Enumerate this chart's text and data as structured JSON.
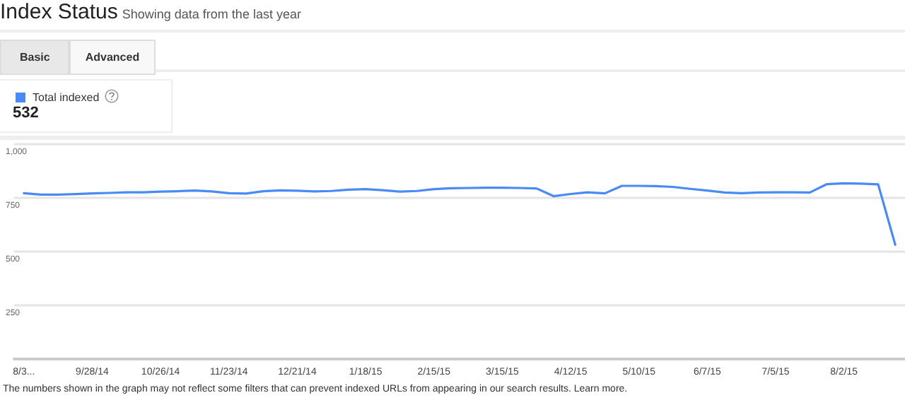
{
  "chart_data": {
    "type": "line",
    "title": "Index Status",
    "subtitle": "Showing data from the last year",
    "x": [
      "2014-08-31",
      "2014-09-07",
      "2014-09-14",
      "2014-09-21",
      "2014-09-28",
      "2014-10-05",
      "2014-10-12",
      "2014-10-19",
      "2014-10-26",
      "2014-11-02",
      "2014-11-09",
      "2014-11-16",
      "2014-11-23",
      "2014-11-30",
      "2014-12-07",
      "2014-12-14",
      "2014-12-21",
      "2014-12-28",
      "2015-01-04",
      "2015-01-11",
      "2015-01-18",
      "2015-01-25",
      "2015-02-01",
      "2015-02-08",
      "2015-02-15",
      "2015-02-22",
      "2015-03-01",
      "2015-03-08",
      "2015-03-15",
      "2015-03-22",
      "2015-03-29",
      "2015-04-05",
      "2015-04-12",
      "2015-04-19",
      "2015-04-26",
      "2015-05-03",
      "2015-05-10",
      "2015-05-17",
      "2015-05-24",
      "2015-05-31",
      "2015-06-07",
      "2015-06-14",
      "2015-06-21",
      "2015-06-28",
      "2015-07-05",
      "2015-07-12",
      "2015-07-19",
      "2015-07-26",
      "2015-08-02",
      "2015-08-09",
      "2015-08-16",
      "2015-08-23"
    ],
    "series": [
      {
        "name": "Total indexed",
        "color": "#4a8af4",
        "values": [
          772,
          765,
          765,
          768,
          771,
          773,
          776,
          776,
          779,
          781,
          784,
          780,
          772,
          770,
          781,
          785,
          783,
          780,
          782,
          788,
          791,
          786,
          779,
          782,
          791,
          795,
          796,
          797,
          797,
          796,
          794,
          758,
          768,
          776,
          771,
          806,
          806,
          805,
          801,
          792,
          784,
          775,
          772,
          775,
          776,
          776,
          775,
          814,
          818,
          816,
          813,
          532
        ]
      }
    ],
    "xlim": [
      "2014-08-27",
      "2015-08-27"
    ],
    "xticks": [
      {
        "value": "2014-08-31",
        "label": "8/3..."
      },
      {
        "value": "2014-09-28",
        "label": "9/28/14"
      },
      {
        "value": "2014-10-26",
        "label": "10/26/14"
      },
      {
        "value": "2014-11-23",
        "label": "11/23/14"
      },
      {
        "value": "2014-12-21",
        "label": "12/21/14"
      },
      {
        "value": "2015-01-18",
        "label": "1/18/15"
      },
      {
        "value": "2015-02-15",
        "label": "2/15/15"
      },
      {
        "value": "2015-03-15",
        "label": "3/15/15"
      },
      {
        "value": "2015-04-12",
        "label": "4/12/15"
      },
      {
        "value": "2015-05-10",
        "label": "5/10/15"
      },
      {
        "value": "2015-06-07",
        "label": "6/7/15"
      },
      {
        "value": "2015-07-05",
        "label": "7/5/15"
      },
      {
        "value": "2015-08-02",
        "label": "8/2/15"
      }
    ],
    "ylim": [
      0,
      1000
    ],
    "yticks": [
      {
        "value": 1000,
        "label": "1,000"
      },
      750,
      500,
      250
    ],
    "grid": "y",
    "legend": "top left",
    "marker": "none",
    "line_style": "solid",
    "annotations": [
      "Basic",
      "Advanced",
      "532",
      "The numbers shown in the graph may not reflect some filters that can prevent indexed URLs from appearing in our search results. Learn more."
    ]
  }
}
